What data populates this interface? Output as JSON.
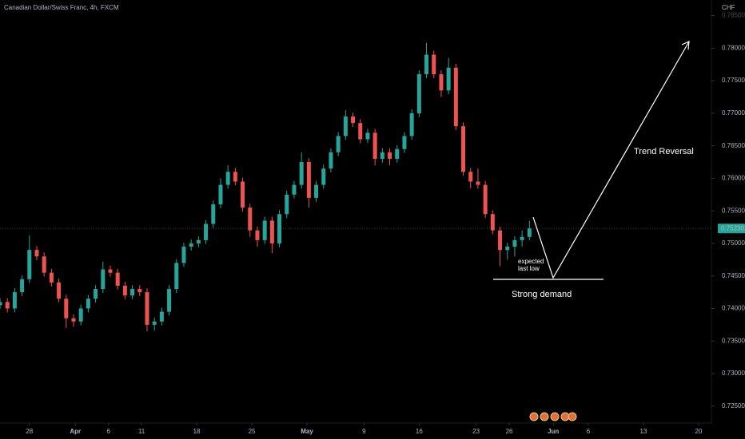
{
  "chart_data": {
    "type": "candlestick",
    "title": "Canadian Dollar/Swiss Franc, 4h, FXCM",
    "currency": "CHF",
    "annotations": {
      "trend": "Trend Reversal",
      "demand": "Strong demand",
      "low": [
        "expected",
        "last low"
      ]
    },
    "up_color": "#26a69a",
    "down_color": "#ef5350",
    "grid": false,
    "xlim": [
      0,
      387
    ],
    "ylim": [
      0.7224,
      0.7874
    ],
    "xticks": [
      {
        "value": 16,
        "label": "28"
      },
      {
        "value": 41,
        "label": "Apr"
      },
      {
        "value": 59,
        "label": "6"
      },
      {
        "value": 77,
        "label": "11"
      },
      {
        "value": 107,
        "label": "18"
      },
      {
        "value": 137,
        "label": "25"
      },
      {
        "value": 167,
        "label": "May"
      },
      {
        "value": 198,
        "label": "9"
      },
      {
        "value": 228,
        "label": "16"
      },
      {
        "value": 259,
        "label": "23"
      },
      {
        "value": 277,
        "label": "26"
      },
      {
        "value": 301,
        "label": "Jun"
      },
      {
        "value": 320,
        "label": "6"
      },
      {
        "value": 350,
        "label": "13"
      },
      {
        "value": 380,
        "label": "20"
      }
    ],
    "yticks": [
      {
        "value": 0.725,
        "label": "0.72500"
      },
      {
        "value": 0.73,
        "label": "0.73000"
      },
      {
        "value": 0.735,
        "label": "0.73500"
      },
      {
        "value": 0.74,
        "label": "0.74000"
      },
      {
        "value": 0.745,
        "label": "0.74500"
      },
      {
        "value": 0.75,
        "label": "0.75000"
      },
      {
        "value": 0.755,
        "label": "0.75500"
      },
      {
        "value": 0.76,
        "label": "0.76000"
      },
      {
        "value": 0.765,
        "label": "0.76500"
      },
      {
        "value": 0.77,
        "label": "0.77000"
      },
      {
        "value": 0.775,
        "label": "0.77500"
      },
      {
        "value": 0.78,
        "label": "0.78000"
      },
      {
        "value": 0.785,
        "label": "0.78500"
      }
    ],
    "last_price": {
      "value": 0.7523,
      "label": "0.75230"
    },
    "candles": {
      "x": [
        0,
        4,
        8,
        12,
        16,
        20,
        24,
        28,
        32,
        36,
        40,
        44,
        48,
        52,
        56,
        60,
        64,
        68,
        72,
        76,
        80,
        84,
        88,
        92,
        96,
        100,
        104,
        108,
        112,
        116,
        120,
        124,
        128,
        132,
        136,
        140,
        144,
        148,
        152,
        156,
        160,
        164,
        168,
        172,
        176,
        180,
        184,
        188,
        192,
        196,
        200,
        204,
        208,
        212,
        216,
        220,
        224,
        228,
        232,
        236,
        240,
        244,
        248,
        252,
        256,
        260,
        264,
        268,
        272,
        276,
        280,
        284,
        288
      ],
      "open": [
        0.7405,
        0.741,
        0.74,
        0.7425,
        0.7445,
        0.749,
        0.748,
        0.7455,
        0.744,
        0.7415,
        0.7385,
        0.738,
        0.74,
        0.7415,
        0.743,
        0.746,
        0.7455,
        0.7435,
        0.742,
        0.743,
        0.7425,
        0.7375,
        0.738,
        0.7395,
        0.743,
        0.747,
        0.7495,
        0.75,
        0.7505,
        0.753,
        0.756,
        0.759,
        0.761,
        0.7595,
        0.7555,
        0.752,
        0.7505,
        0.7535,
        0.75,
        0.7545,
        0.7575,
        0.759,
        0.7625,
        0.757,
        0.759,
        0.7615,
        0.764,
        0.7665,
        0.7695,
        0.7685,
        0.766,
        0.767,
        0.763,
        0.764,
        0.763,
        0.7645,
        0.7665,
        0.77,
        0.776,
        0.779,
        0.776,
        0.7735,
        0.777,
        0.768,
        0.761,
        0.7595,
        0.759,
        0.7545,
        0.752,
        0.749,
        0.7495,
        0.7505,
        0.751
      ],
      "high": [
        0.7416,
        0.7416,
        0.7431,
        0.7451,
        0.7512,
        0.7496,
        0.7486,
        0.7461,
        0.7446,
        0.7421,
        0.7391,
        0.7406,
        0.7421,
        0.7436,
        0.7472,
        0.7466,
        0.7461,
        0.7441,
        0.7436,
        0.7436,
        0.7431,
        0.7386,
        0.7401,
        0.7436,
        0.7476,
        0.7501,
        0.7506,
        0.7511,
        0.7536,
        0.7566,
        0.76,
        0.762,
        0.7616,
        0.7601,
        0.7561,
        0.7526,
        0.7541,
        0.7541,
        0.7551,
        0.7581,
        0.7596,
        0.764,
        0.7631,
        0.7596,
        0.7621,
        0.7646,
        0.7671,
        0.7705,
        0.7701,
        0.7691,
        0.7676,
        0.7676,
        0.7646,
        0.7646,
        0.7651,
        0.7671,
        0.7706,
        0.7766,
        0.7808,
        0.7796,
        0.7766,
        0.7785,
        0.7776,
        0.7686,
        0.7616,
        0.7615,
        0.7596,
        0.7551,
        0.7526,
        0.7501,
        0.7511,
        0.752,
        0.7535
      ],
      "low": [
        0.7399,
        0.7394,
        0.7394,
        0.7419,
        0.7439,
        0.7474,
        0.7449,
        0.7434,
        0.7409,
        0.737,
        0.7372,
        0.7374,
        0.7394,
        0.7409,
        0.7424,
        0.7449,
        0.7429,
        0.7414,
        0.7414,
        0.7419,
        0.7365,
        0.7366,
        0.7374,
        0.7389,
        0.7424,
        0.7464,
        0.7489,
        0.7494,
        0.7499,
        0.7524,
        0.7554,
        0.7584,
        0.7589,
        0.7549,
        0.751,
        0.7495,
        0.7499,
        0.7485,
        0.7494,
        0.7539,
        0.7569,
        0.7584,
        0.7555,
        0.7564,
        0.7584,
        0.7609,
        0.7634,
        0.7659,
        0.7679,
        0.7654,
        0.7654,
        0.762,
        0.7624,
        0.762,
        0.7624,
        0.7639,
        0.7659,
        0.7694,
        0.7754,
        0.7754,
        0.7725,
        0.7729,
        0.7674,
        0.7604,
        0.7585,
        0.7584,
        0.7539,
        0.7514,
        0.7465,
        0.7475,
        0.748,
        0.7495,
        0.7505
      ],
      "close": [
        0.741,
        0.74,
        0.7425,
        0.7445,
        0.749,
        0.748,
        0.7455,
        0.744,
        0.7415,
        0.7385,
        0.738,
        0.74,
        0.7415,
        0.743,
        0.746,
        0.7455,
        0.7435,
        0.742,
        0.743,
        0.7425,
        0.7375,
        0.738,
        0.7395,
        0.743,
        0.747,
        0.7495,
        0.75,
        0.7505,
        0.753,
        0.756,
        0.759,
        0.761,
        0.7595,
        0.7555,
        0.752,
        0.7505,
        0.7535,
        0.75,
        0.7545,
        0.7575,
        0.759,
        0.7625,
        0.757,
        0.759,
        0.7615,
        0.764,
        0.7665,
        0.7695,
        0.7685,
        0.766,
        0.767,
        0.763,
        0.764,
        0.763,
        0.7645,
        0.7665,
        0.77,
        0.776,
        0.779,
        0.776,
        0.7735,
        0.777,
        0.768,
        0.761,
        0.7595,
        0.759,
        0.7545,
        0.752,
        0.749,
        0.7495,
        0.7505,
        0.751,
        0.7523
      ]
    }
  }
}
